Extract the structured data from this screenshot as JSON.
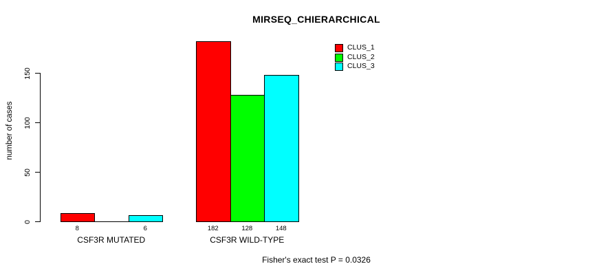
{
  "chart_data": {
    "type": "bar",
    "title": "MIRSEQ_CHIERARCHICAL",
    "ylabel": "number of cases",
    "xlabel": "",
    "annotation": "Fisher's exact test P = 0.0326",
    "categories": [
      "CSF3R MUTATED",
      "CSF3R WILD-TYPE"
    ],
    "series": [
      {
        "name": "CLUS_1",
        "color": "#ff0000",
        "values": [
          8,
          182
        ]
      },
      {
        "name": "CLUS_2",
        "color": "#00ff00",
        "values": [
          0,
          128
        ]
      },
      {
        "name": "CLUS_3",
        "color": "#00ffff",
        "values": [
          6,
          148
        ]
      }
    ],
    "bar_labels": [
      [
        "8",
        "",
        "6"
      ],
      [
        "182",
        "128",
        "148"
      ]
    ],
    "yticks": [
      0,
      50,
      100,
      150
    ],
    "ylim": [
      0,
      150
    ],
    "grid": false,
    "legend_position": "top-right",
    "axis_color": "#000000",
    "background_color": "#ffffff"
  }
}
